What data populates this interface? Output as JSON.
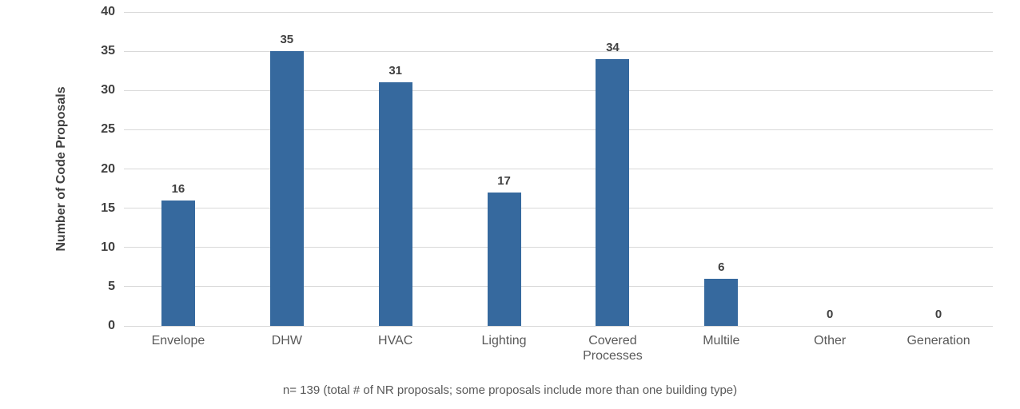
{
  "chart_data": {
    "type": "bar",
    "categories": [
      "Envelope",
      "DHW",
      "HVAC",
      "Lighting",
      "Covered Processes",
      "Multile",
      "Other",
      "Generation"
    ],
    "values": [
      16,
      35,
      31,
      17,
      34,
      6,
      0,
      0
    ],
    "title": "",
    "xlabel": "",
    "ylabel": "Number of Code Proposals",
    "ylim": [
      0,
      40
    ],
    "yticks": [
      0,
      5,
      10,
      15,
      20,
      25,
      30,
      35,
      40
    ],
    "grid": true,
    "legend": false,
    "bar_color": "#36699e",
    "grid_color": "#d9d9d9",
    "caption": "n= 139 (total # of NR proposals; some proposals include more than one building type)"
  }
}
